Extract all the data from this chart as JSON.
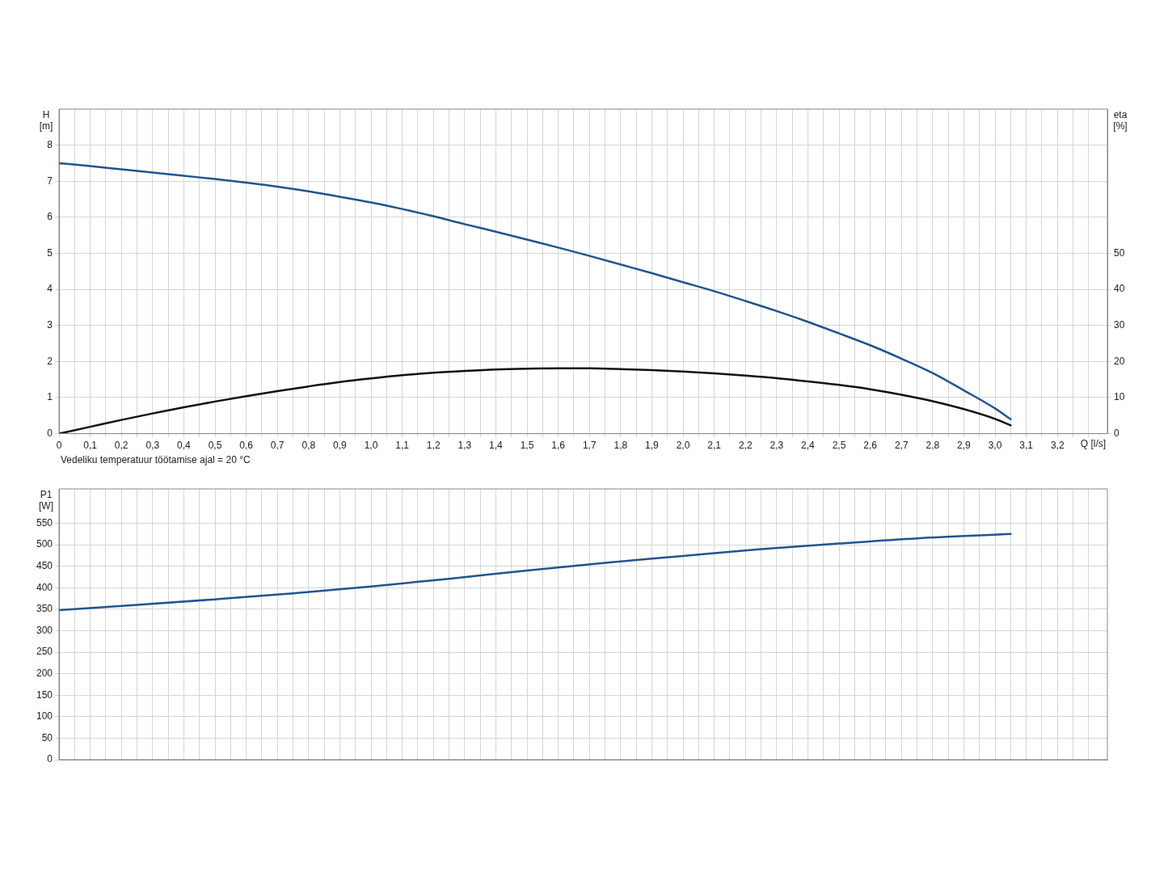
{
  "chart_data": [
    {
      "type": "line",
      "xlabel": "Q [l/s]",
      "ylabel": "H [m]",
      "y2label": "eta [%]",
      "annotations": [
        "Vedeliku temperatuur töötamise ajal = 20 °C"
      ],
      "x": [
        0,
        0.1,
        0.2,
        0.3,
        0.4,
        0.5,
        0.6,
        0.7,
        0.8,
        0.9,
        1.0,
        1.1,
        1.2,
        1.3,
        1.4,
        1.5,
        1.6,
        1.7,
        1.8,
        1.9,
        2.0,
        2.1,
        2.2,
        2.3,
        2.4,
        2.5,
        2.6,
        2.7,
        2.8,
        2.9,
        3.0,
        3.05
      ],
      "series": [
        {
          "color": "#1f5591",
          "values": [
            7.5,
            7.42,
            7.33,
            7.24,
            7.15,
            7.06,
            6.96,
            6.85,
            6.72,
            6.57,
            6.41,
            6.23,
            6.03,
            5.81,
            5.6,
            5.38,
            5.16,
            4.93,
            4.69,
            4.45,
            4.2,
            3.95,
            3.68,
            3.4,
            3.1,
            2.78,
            2.45,
            2.08,
            1.68,
            1.2,
            0.7,
            0.4
          ]
        },
        {
          "color": "#111111",
          "axis": "y2",
          "values": [
            0,
            1.9,
            3.8,
            5.6,
            7.3,
            8.9,
            10.4,
            11.8,
            13.1,
            14.3,
            15.3,
            16.2,
            16.9,
            17.4,
            17.8,
            18.0,
            18.1,
            18.1,
            17.9,
            17.6,
            17.2,
            16.7,
            16.1,
            15.4,
            14.5,
            13.5,
            12.3,
            10.8,
            9.0,
            6.8,
            4.1,
            2.3
          ]
        }
      ],
      "xlim": [
        0,
        3.36
      ],
      "xticks": [
        0,
        {
          "value": 0.05,
          "label": null
        },
        {
          "value": 0.1,
          "label": "0,1"
        },
        {
          "value": 0.15,
          "label": null
        },
        {
          "value": 0.2,
          "label": "0,2"
        },
        {
          "value": 0.25,
          "label": null
        },
        {
          "value": 0.3,
          "label": "0,3"
        },
        {
          "value": 0.35,
          "label": null
        },
        {
          "value": 0.4,
          "label": "0,4"
        },
        {
          "value": 0.45,
          "label": null
        },
        {
          "value": 0.5,
          "label": "0,5"
        },
        {
          "value": 0.55,
          "label": null
        },
        {
          "value": 0.6,
          "label": "0,6"
        },
        {
          "value": 0.65,
          "label": null
        },
        {
          "value": 0.7,
          "label": "0,7"
        },
        {
          "value": 0.75,
          "label": null
        },
        {
          "value": 0.8,
          "label": "0,8"
        },
        {
          "value": 0.85,
          "label": null
        },
        {
          "value": 0.9,
          "label": "0,9"
        },
        {
          "value": 0.95,
          "label": null
        },
        {
          "value": 1.0,
          "label": "1,0"
        },
        {
          "value": 1.05,
          "label": null
        },
        {
          "value": 1.1,
          "label": "1,1"
        },
        {
          "value": 1.15,
          "label": null
        },
        {
          "value": 1.2,
          "label": "1,2"
        },
        {
          "value": 1.25,
          "label": null
        },
        {
          "value": 1.3,
          "label": "1,3"
        },
        {
          "value": 1.35,
          "label": null
        },
        {
          "value": 1.4,
          "label": "1,4"
        },
        {
          "value": 1.45,
          "label": null
        },
        {
          "value": 1.5,
          "label": "1,5"
        },
        {
          "value": 1.55,
          "label": null
        },
        {
          "value": 1.6,
          "label": "1,6"
        },
        {
          "value": 1.65,
          "label": null
        },
        {
          "value": 1.7,
          "label": "1,7"
        },
        {
          "value": 1.75,
          "label": null
        },
        {
          "value": 1.8,
          "label": "1,8"
        },
        {
          "value": 1.85,
          "label": null
        },
        {
          "value": 1.9,
          "label": "1,9"
        },
        {
          "value": 1.95,
          "label": null
        },
        {
          "value": 2.0,
          "label": "2,0"
        },
        {
          "value": 2.05,
          "label": null
        },
        {
          "value": 2.1,
          "label": "2,1"
        },
        {
          "value": 2.15,
          "label": null
        },
        {
          "value": 2.2,
          "label": "2,2"
        },
        {
          "value": 2.25,
          "label": null
        },
        {
          "value": 2.3,
          "label": "2,3"
        },
        {
          "value": 2.35,
          "label": null
        },
        {
          "value": 2.4,
          "label": "2,4"
        },
        {
          "value": 2.45,
          "label": null
        },
        {
          "value": 2.5,
          "label": "2,5"
        },
        {
          "value": 2.55,
          "label": null
        },
        {
          "value": 2.6,
          "label": "2,6"
        },
        {
          "value": 2.65,
          "label": null
        },
        {
          "value": 2.7,
          "label": "2,7"
        },
        {
          "value": 2.75,
          "label": null
        },
        {
          "value": 2.8,
          "label": "2,8"
        },
        {
          "value": 2.85,
          "label": null
        },
        {
          "value": 2.9,
          "label": "2,9"
        },
        {
          "value": 2.95,
          "label": null
        },
        {
          "value": 3.0,
          "label": "3,0"
        },
        {
          "value": 3.05,
          "label": null
        },
        {
          "value": 3.1,
          "label": "3,1"
        },
        {
          "value": 3.15,
          "label": null
        },
        {
          "value": 3.2,
          "label": "3,2"
        },
        {
          "value": 3.25,
          "label": null
        },
        {
          "value": 3.3,
          "label": null
        }
      ],
      "ylim": [
        0,
        9
      ],
      "yticks": [
        0,
        1,
        2,
        3,
        4,
        5,
        6,
        7,
        8
      ],
      "y2lim": [
        0,
        90
      ],
      "y2ticks": [
        0,
        10,
        20,
        30,
        40,
        50
      ],
      "grid": true,
      "legend": false,
      "marker": "none"
    },
    {
      "type": "line",
      "ylabel": "P1 [W]",
      "x": [
        0,
        0.25,
        0.5,
        0.75,
        1.0,
        1.25,
        1.5,
        1.75,
        2.0,
        2.25,
        2.5,
        2.75,
        3.05
      ],
      "series": [
        {
          "color": "#1f5591",
          "values": [
            348,
            360,
            373,
            387,
            403,
            421,
            440,
            458,
            474,
            490,
            503,
            515,
            525
          ]
        }
      ],
      "xlim": [
        0,
        3.36
      ],
      "xticks": [
        0,
        {
          "value": 0.05,
          "label": null
        },
        {
          "value": 0.1,
          "label": null
        },
        {
          "value": 0.15,
          "label": null
        },
        {
          "value": 0.2,
          "label": null
        },
        {
          "value": 0.25,
          "label": null
        },
        {
          "value": 0.3,
          "label": null
        },
        {
          "value": 0.35,
          "label": null
        },
        {
          "value": 0.4,
          "label": null
        },
        {
          "value": 0.45,
          "label": null
        },
        {
          "value": 0.5,
          "label": null
        },
        {
          "value": 0.55,
          "label": null
        },
        {
          "value": 0.6,
          "label": null
        },
        {
          "value": 0.65,
          "label": null
        },
        {
          "value": 0.7,
          "label": null
        },
        {
          "value": 0.75,
          "label": null
        },
        {
          "value": 0.8,
          "label": null
        },
        {
          "value": 0.85,
          "label": null
        },
        {
          "value": 0.9,
          "label": null
        },
        {
          "value": 0.95,
          "label": null
        },
        {
          "value": 1.0,
          "label": null
        },
        {
          "value": 1.05,
          "label": null
        },
        {
          "value": 1.1,
          "label": null
        },
        {
          "value": 1.15,
          "label": null
        },
        {
          "value": 1.2,
          "label": null
        },
        {
          "value": 1.25,
          "label": null
        },
        {
          "value": 1.3,
          "label": null
        },
        {
          "value": 1.35,
          "label": null
        },
        {
          "value": 1.4,
          "label": null
        },
        {
          "value": 1.45,
          "label": null
        },
        {
          "value": 1.5,
          "label": null
        },
        {
          "value": 1.55,
          "label": null
        },
        {
          "value": 1.6,
          "label": null
        },
        {
          "value": 1.65,
          "label": null
        },
        {
          "value": 1.7,
          "label": null
        },
        {
          "value": 1.75,
          "label": null
        },
        {
          "value": 1.8,
          "label": null
        },
        {
          "value": 1.85,
          "label": null
        },
        {
          "value": 1.9,
          "label": null
        },
        {
          "value": 1.95,
          "label": null
        },
        {
          "value": 2.0,
          "label": null
        },
        {
          "value": 2.05,
          "label": null
        },
        {
          "value": 2.1,
          "label": null
        },
        {
          "value": 2.15,
          "label": null
        },
        {
          "value": 2.2,
          "label": null
        },
        {
          "value": 2.25,
          "label": null
        },
        {
          "value": 2.3,
          "label": null
        },
        {
          "value": 2.35,
          "label": null
        },
        {
          "value": 2.4,
          "label": null
        },
        {
          "value": 2.45,
          "label": null
        },
        {
          "value": 2.5,
          "label": null
        },
        {
          "value": 2.55,
          "label": null
        },
        {
          "value": 2.6,
          "label": null
        },
        {
          "value": 2.65,
          "label": null
        },
        {
          "value": 2.7,
          "label": null
        },
        {
          "value": 2.75,
          "label": null
        },
        {
          "value": 2.8,
          "label": null
        },
        {
          "value": 2.85,
          "label": null
        },
        {
          "value": 2.9,
          "label": null
        },
        {
          "value": 2.95,
          "label": null
        },
        {
          "value": 3.0,
          "label": null
        },
        {
          "value": 3.05,
          "label": null
        },
        {
          "value": 3.1,
          "label": null
        },
        {
          "value": 3.15,
          "label": null
        },
        {
          "value": 3.2,
          "label": null
        },
        {
          "value": 3.25,
          "label": null
        },
        {
          "value": 3.3,
          "label": null
        }
      ],
      "ylim": [
        0,
        630
      ],
      "yticks": [
        0,
        50,
        100,
        150,
        200,
        250,
        300,
        350,
        400,
        450,
        500,
        550
      ],
      "tick_labels": "y",
      "grid": true,
      "legend": false,
      "marker": "none"
    }
  ]
}
